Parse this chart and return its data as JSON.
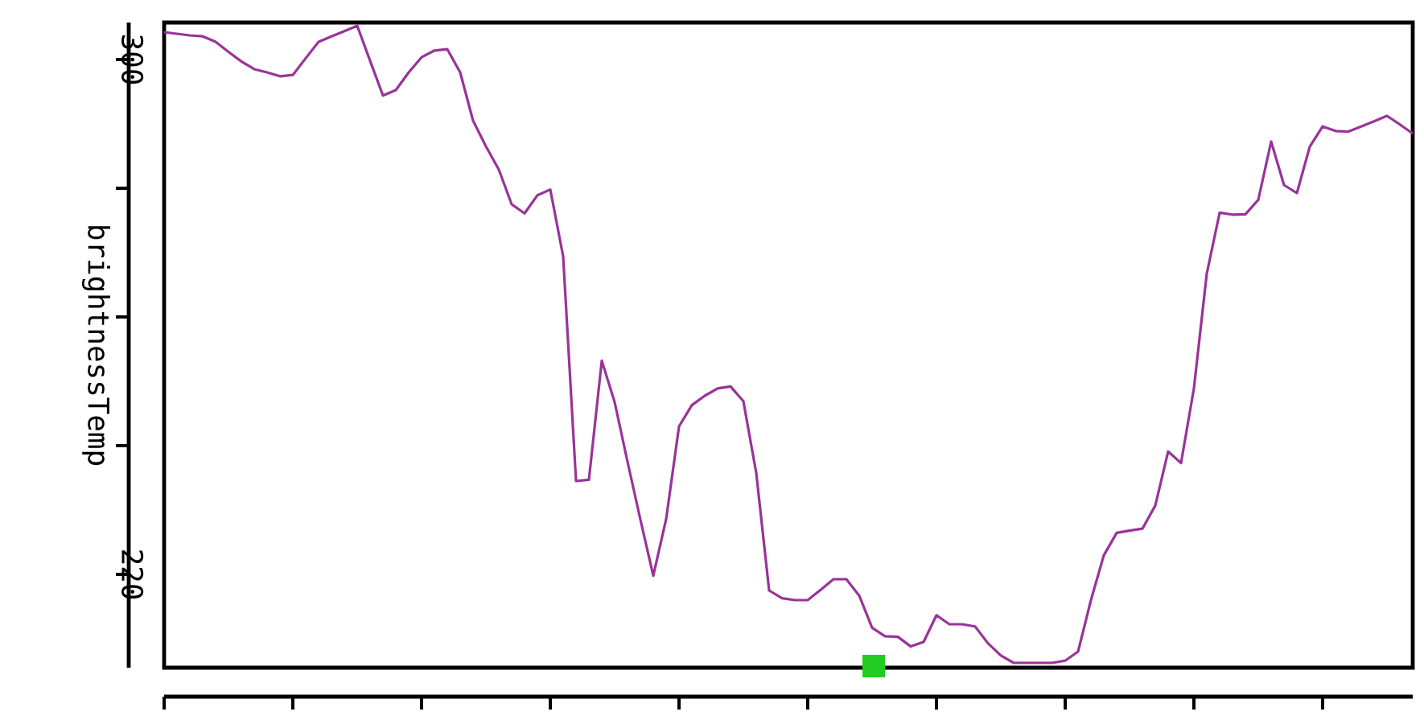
{
  "chart_data": {
    "type": "line",
    "ylabel": "brightnessTemp",
    "categories": [
      null,
      null,
      null,
      null,
      null,
      null,
      null,
      null,
      null,
      null,
      null,
      null,
      null,
      null,
      null,
      null,
      null,
      null,
      null,
      null,
      null,
      null,
      null,
      null,
      null,
      null,
      null,
      null,
      null,
      null,
      null,
      null,
      null,
      null,
      null,
      null,
      null,
      null,
      null,
      null,
      null,
      null,
      null,
      null,
      null,
      null,
      null,
      null,
      null,
      null,
      null,
      null,
      null,
      null,
      null,
      null,
      null,
      null,
      null,
      null,
      null,
      null,
      null,
      null,
      null,
      null,
      null,
      null,
      null,
      null,
      null,
      null,
      null,
      null,
      null,
      null,
      null,
      null,
      null,
      null,
      null,
      null,
      null,
      null,
      null,
      null,
      null,
      null,
      null,
      null,
      null,
      null,
      null,
      null,
      null,
      null,
      null,
      null
    ],
    "ylim": [
      205.5,
      305.75
    ],
    "yticks": [
      220,
      300
    ],
    "tick_labels": "y",
    "series": [
      {
        "color": "#993399",
        "values": [
          304.25,
          304.0,
          303.75,
          303.6,
          302.75,
          301.2,
          299.7,
          298.5,
          298.0,
          297.4,
          297.6,
          300.2,
          302.75,
          303.6,
          304.4,
          305.25,
          299.8,
          294.4,
          295.25,
          298.0,
          300.35,
          301.4,
          301.6,
          298.0,
          290.5,
          286.5,
          282.9,
          277.5,
          276.1,
          278.9,
          279.8,
          269.4,
          234.5,
          234.7,
          253.2,
          246.75,
          237.5,
          228.5,
          219.8,
          228.6,
          243,
          246.3,
          247.75,
          248.9,
          249.2,
          246.9,
          235.75,
          217.5,
          216.3,
          216,
          216,
          217.6,
          219.25,
          219.25,
          216.7,
          211.7,
          210.4,
          210.3,
          208.8,
          209.5,
          213.65,
          212.25,
          212.25,
          211.9,
          209.3,
          207.4,
          206.25,
          206.25,
          206.25,
          206.25,
          206.6,
          208,
          216,
          222.95,
          226.45,
          226.8,
          227.1,
          230.7,
          239.1,
          237.3,
          248.9,
          266.75,
          276.2,
          275.9,
          275.95,
          278.2,
          287.25,
          280.5,
          279.25,
          286.45,
          289.6,
          288.9,
          288.8,
          289.6,
          290.4,
          291.25,
          289.9,
          288.5
        ]
      }
    ]
  }
}
